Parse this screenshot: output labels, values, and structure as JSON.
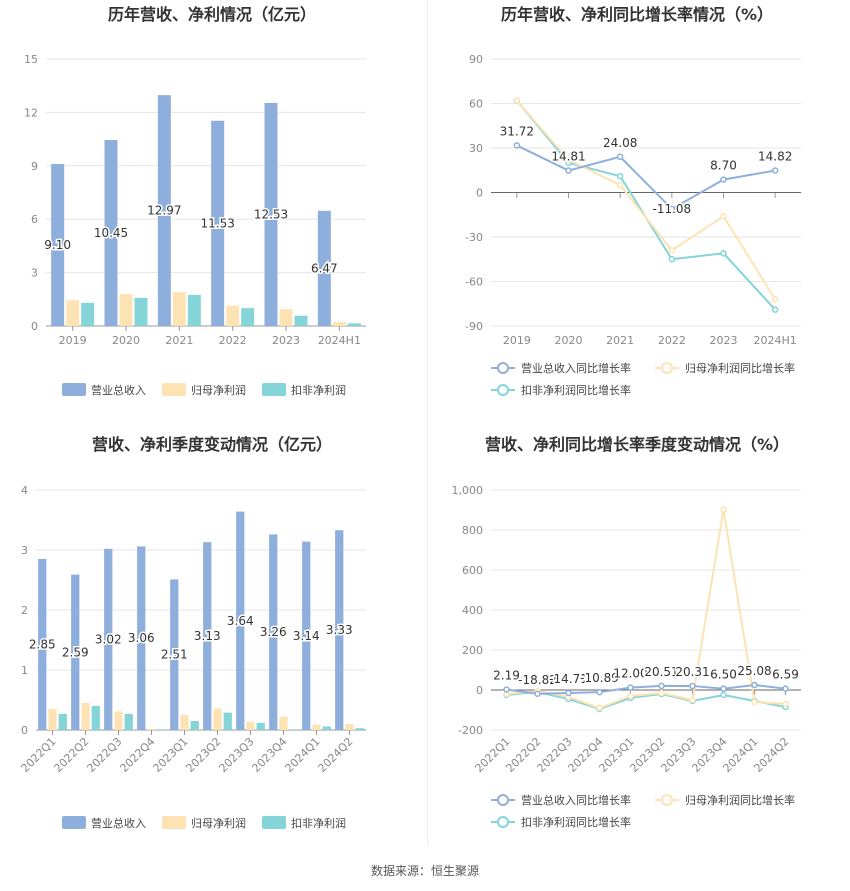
{
  "source": "数据来源：恒生聚源",
  "colors": {
    "revenue": "#8eaedc",
    "parent_profit": "#fde3b4",
    "deducted_profit": "#84d4d8",
    "revenue_line": "#8eaedc",
    "parent_line": "#fde3b4",
    "deducted_line": "#84d4d8",
    "grid": "#e6e6e6",
    "axis_text": "#888888",
    "title": "#333333"
  },
  "chart_data": [
    {
      "type": "bar",
      "title": "历年营收、净利情况（亿元）",
      "categories": [
        "2019",
        "2020",
        "2021",
        "2022",
        "2023",
        "2024H1"
      ],
      "ylim": [
        0,
        15
      ],
      "yticks": [
        0,
        3,
        6,
        9,
        12,
        15
      ],
      "ytick_labels": [
        "0",
        "3",
        "6",
        "9",
        "12",
        "15"
      ],
      "series": [
        {
          "name": "营业总收入",
          "values": [
            9.1,
            10.45,
            12.97,
            11.53,
            12.53,
            6.47
          ],
          "labels": [
            "9.10",
            "10.45",
            "12.97",
            "11.53",
            "12.53",
            "6.47"
          ]
        },
        {
          "name": "归母净利润",
          "values": [
            1.45,
            1.8,
            1.9,
            1.15,
            0.95,
            0.22
          ]
        },
        {
          "name": "扣非净利润",
          "values": [
            1.3,
            1.58,
            1.75,
            1.0,
            0.58,
            0.15
          ]
        }
      ],
      "legend": [
        "营业总收入",
        "归母净利润",
        "扣非净利润"
      ]
    },
    {
      "type": "line",
      "title": "历年营收、净利同比增长率情况（%）",
      "categories": [
        "2019",
        "2020",
        "2021",
        "2022",
        "2023",
        "2024H1"
      ],
      "ylim": [
        -90,
        90
      ],
      "yticks": [
        -90,
        -60,
        -30,
        0,
        30,
        60,
        90
      ],
      "ytick_labels": [
        "-90",
        "-60",
        "-30",
        "0",
        "30",
        "60",
        "90"
      ],
      "series": [
        {
          "name": "营业总收入同比增长率",
          "values": [
            31.72,
            14.81,
            24.08,
            -11.08,
            8.7,
            14.82
          ],
          "labels": [
            "31.72",
            "14.81",
            "24.08",
            "-11.08",
            "8.70",
            "14.82"
          ]
        },
        {
          "name": "归母净利润同比增长率",
          "values": [
            62,
            22,
            5,
            -39,
            -16,
            -72
          ]
        },
        {
          "name": "扣非净利润同比增长率",
          "values": [
            62,
            20,
            11,
            -45,
            -41,
            -79
          ]
        }
      ],
      "legend": [
        "营业总收入同比增长率",
        "归母净利润同比增长率",
        "扣非净利润同比增长率"
      ]
    },
    {
      "type": "bar",
      "title": "营收、净利季度变动情况（亿元）",
      "categories": [
        "2022Q1",
        "2022Q2",
        "2022Q3",
        "2022Q4",
        "2023Q1",
        "2023Q2",
        "2023Q3",
        "2023Q4",
        "2024Q1",
        "2024Q2"
      ],
      "ylim": [
        0,
        4
      ],
      "yticks": [
        0,
        1,
        2,
        3,
        4
      ],
      "ytick_labels": [
        "0",
        "1",
        "2",
        "3",
        "4"
      ],
      "series": [
        {
          "name": "营业总收入",
          "values": [
            2.85,
            2.59,
            3.02,
            3.06,
            2.51,
            3.13,
            3.64,
            3.26,
            3.14,
            3.33
          ],
          "labels": [
            "2.85",
            "2.59",
            "3.02",
            "3.06",
            "2.51",
            "3.13",
            "3.64",
            "3.26",
            "3.14",
            "3.33"
          ]
        },
        {
          "name": "归母净利润",
          "values": [
            0.35,
            0.45,
            0.31,
            0.02,
            0.25,
            0.36,
            0.14,
            0.22,
            0.09,
            0.1
          ]
        },
        {
          "name": "扣非净利润",
          "values": [
            0.27,
            0.4,
            0.27,
            0.01,
            0.15,
            0.29,
            0.12,
            0.01,
            0.06,
            0.03
          ]
        }
      ],
      "legend": [
        "营业总收入",
        "归母净利润",
        "扣非净利润"
      ]
    },
    {
      "type": "line",
      "title": "营收、净利同比增长率季度变动情况（%）",
      "categories": [
        "2022Q1",
        "2022Q2",
        "2022Q3",
        "2022Q4",
        "2023Q1",
        "2023Q2",
        "2023Q3",
        "2023Q4",
        "2024Q1",
        "2024Q2"
      ],
      "ylim": [
        -200,
        1000
      ],
      "yticks": [
        -200,
        0,
        200,
        400,
        600,
        800,
        1000
      ],
      "ytick_labels": [
        "-200",
        "0",
        "200",
        "400",
        "600",
        "800",
        "1,000"
      ],
      "series": [
        {
          "name": "营业总收入同比增长率",
          "values": [
            2.19,
            -18.82,
            -14.71,
            -10.89,
            12.0,
            20.51,
            20.31,
            6.5,
            25.08,
            6.59
          ],
          "labels": [
            "2.19",
            "-18.82",
            "-14.71",
            "-10.89",
            "12.00",
            "20.51",
            "20.31",
            "6.50",
            "25.08",
            "6.59"
          ]
        },
        {
          "name": "归母净利润同比增长率",
          "values": [
            -20,
            -5,
            -35,
            -90,
            -30,
            -15,
            -50,
            903,
            -60,
            -70
          ]
        },
        {
          "name": "扣非净利润同比增长率",
          "values": [
            -25,
            -10,
            -45,
            -95,
            -40,
            -20,
            -55,
            -25,
            -55,
            -85
          ]
        }
      ],
      "legend": [
        "营业总收入同比增长率",
        "归母净利润同比增长率",
        "扣非净利润同比增长率"
      ]
    }
  ]
}
